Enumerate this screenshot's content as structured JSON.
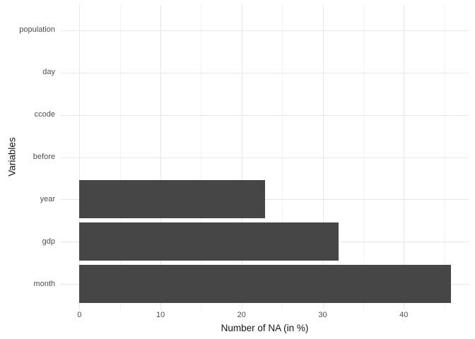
{
  "figure": {
    "background": "#ffffff"
  },
  "chart_data": {
    "type": "bar",
    "orientation": "horizontal",
    "title": "",
    "xlabel": "Number of NA (in %)",
    "ylabel": "Variables",
    "categories": [
      "population",
      "day",
      "ccode",
      "before",
      "year",
      "gdp",
      "month"
    ],
    "values": [
      0,
      0,
      0,
      0,
      22.9,
      32.0,
      45.8
    ],
    "xticks": [
      0,
      10,
      20,
      30,
      40
    ],
    "xlim": [
      -2.3,
      48.0
    ],
    "grid": true,
    "minor_grid": true,
    "legend_position": "none",
    "bar_color": "#464646",
    "major_grid_color": "#e7e7e7",
    "minor_grid_color": "#f2f2f2",
    "tick_label_color": "#4d4d4d",
    "axis_title_color": "#141414"
  }
}
